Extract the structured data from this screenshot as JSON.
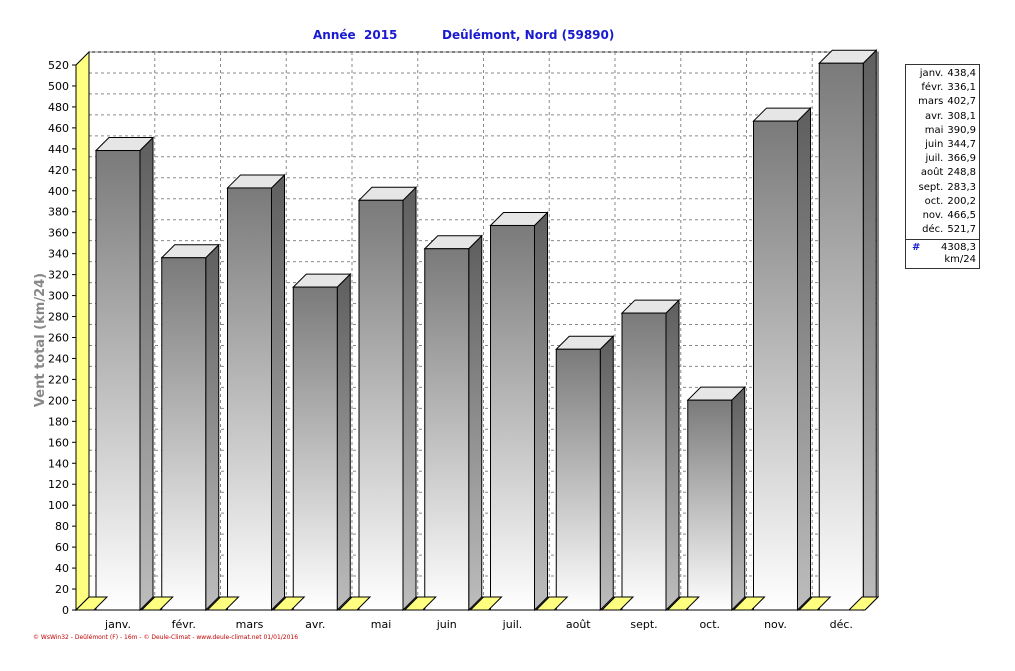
{
  "header": {
    "left_title": "Année  2015",
    "right_title": "Deûlémont, Nord (59890)"
  },
  "chart_data": {
    "type": "bar",
    "categories": [
      "janv.",
      "févr.",
      "mars",
      "avr.",
      "mai",
      "juin",
      "juil.",
      "août",
      "sept.",
      "oct.",
      "nov.",
      "déc."
    ],
    "values": [
      438.4,
      336.1,
      402.7,
      308.1,
      390.9,
      344.7,
      366.9,
      248.8,
      283.3,
      200.2,
      466.5,
      521.7
    ],
    "ylabel": "Vent total  (km/24)",
    "ylim": [
      0,
      520
    ],
    "ytick_step": 20,
    "grid": true,
    "legend_placement": "right"
  },
  "legend": {
    "rows": [
      {
        "month": "janv.",
        "value": "438,4"
      },
      {
        "month": "févr.",
        "value": "336,1"
      },
      {
        "month": "mars",
        "value": "402,7"
      },
      {
        "month": "avr.",
        "value": "308,1"
      },
      {
        "month": "mai",
        "value": "390,9"
      },
      {
        "month": "juin",
        "value": "344,7"
      },
      {
        "month": "juil.",
        "value": "366,9"
      },
      {
        "month": "août",
        "value": "248,8"
      },
      {
        "month": "sept.",
        "value": "283,3"
      },
      {
        "month": "oct.",
        "value": "200,2"
      },
      {
        "month": "nov.",
        "value": "466,5"
      },
      {
        "month": "déc.",
        "value": "521,7"
      }
    ],
    "total_symbol": "#",
    "total_value": "4308,3",
    "total_unit": "km/24"
  },
  "footer": "© WsWin32 - Deûlémont (F) - 16m - © Deule-Climat - www.deule-climat.net  01/01/2016",
  "colors": {
    "title": "#1a1ad0",
    "axis_label": "#888888",
    "wall": "#ffff80",
    "bar_dark": "#7a7a7a",
    "bar_light": "#ffffff",
    "footer": "#c00000"
  }
}
